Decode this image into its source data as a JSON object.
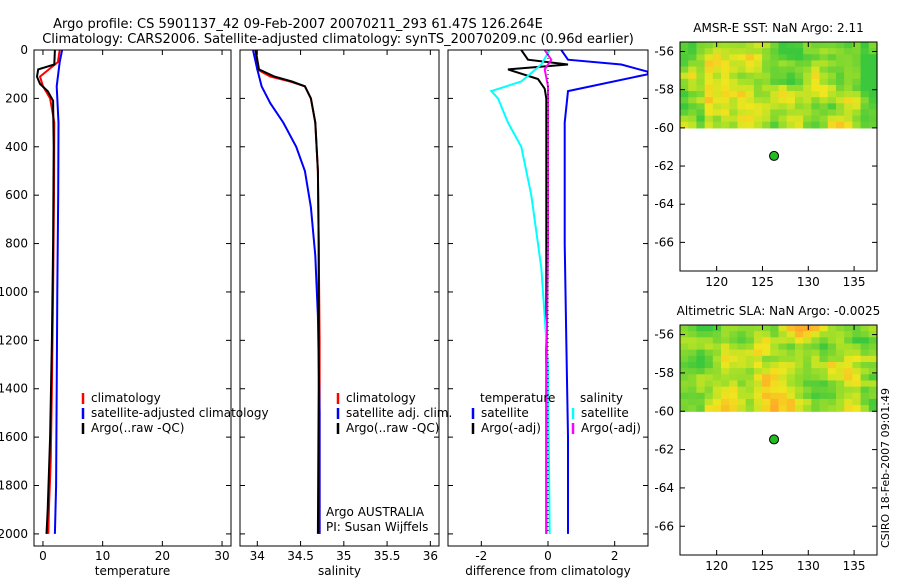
{
  "header": {
    "title_line1": "Argo profile: CS 5901137_42 09-Feb-2007 20070211_293 61.47S 126.264E",
    "title_line2": "Climatology: CARS2006. Satellite-adjusted climatology: synTS_20070209.nc (0.96d earlier)"
  },
  "credit": "CSIRO 18-Feb-2007 09:01:49",
  "colors": {
    "climatology": "#ff0000",
    "satellite": "#0000ff",
    "argo": "#000000",
    "satellite_diff_salinity": "#00ffff",
    "argo_diff_salinity": "#ff00ff",
    "float_marker": "#22bb22"
  },
  "chart_data": [
    {
      "id": "temperature",
      "type": "line",
      "xlabel": "temperature",
      "ylabel": "",
      "xlim": [
        -1.5,
        31.5
      ],
      "ylim": [
        2050,
        0
      ],
      "xticks": [
        0,
        10,
        20,
        30
      ],
      "xtick_labels": [
        "0",
        "10",
        "20",
        "30"
      ],
      "yticks": [
        0,
        200,
        400,
        600,
        800,
        1000,
        1200,
        1400,
        1600,
        1800,
        2000
      ],
      "ytick_labels": [
        "0",
        "200",
        "400",
        "600",
        "800",
        "1000",
        "1200",
        "1400",
        "1600",
        "1800",
        "2000"
      ],
      "legend": [
        "climatology",
        "satellite-adjusted climatology",
        "Argo(..raw -QC)"
      ],
      "legend_position": "lower-right",
      "series": [
        {
          "name": "climatology",
          "color": "#ff0000",
          "x": [
            2.8,
            2.5,
            1.0,
            -0.5,
            0.0,
            1.2,
            1.9,
            1.85,
            1.7,
            1.5,
            1.3,
            1.0,
            0.9
          ],
          "y": [
            0,
            50,
            80,
            110,
            150,
            200,
            300,
            600,
            1000,
            1400,
            1700,
            1900,
            2000
          ]
        },
        {
          "name": "satellite-adjusted climatology",
          "color": "#0000ff",
          "x": [
            3.2,
            2.8,
            2.6,
            2.3,
            2.4,
            2.6,
            2.55,
            2.4,
            2.3,
            2.2,
            2.0
          ],
          "y": [
            0,
            50,
            90,
            150,
            200,
            300,
            600,
            1000,
            1400,
            1800,
            2000
          ]
        },
        {
          "name": "Argo(..raw -QC)",
          "color": "#000000",
          "x": [
            2.0,
            1.9,
            -0.8,
            -1.0,
            -0.5,
            0.8,
            1.7,
            1.8,
            1.7,
            1.5,
            1.2,
            0.8,
            0.6
          ],
          "y": [
            0,
            60,
            80,
            110,
            140,
            170,
            210,
            400,
            800,
            1200,
            1600,
            1900,
            2000
          ]
        }
      ]
    },
    {
      "id": "salinity",
      "type": "line",
      "xlabel": "salinity",
      "ylabel": "",
      "xlim": [
        33.8,
        36.1
      ],
      "ylim": [
        2050,
        0
      ],
      "xticks": [
        34,
        34.5,
        35,
        35.5,
        36
      ],
      "xtick_labels": [
        "34",
        "34.5",
        "35",
        "35.5",
        "36"
      ],
      "legend": [
        "climatology",
        "satellite adj. clim.",
        "Argo(..raw -QC)"
      ],
      "legend_position": "lower-right",
      "annotation": [
        "Argo AUSTRALIA",
        "PI: Susan Wijffels"
      ],
      "series": [
        {
          "name": "climatology",
          "color": "#ff0000",
          "x": [
            33.98,
            34.0,
            34.15,
            34.38,
            34.55,
            34.62,
            34.67,
            34.7,
            34.71,
            34.72,
            34.72,
            34.72
          ],
          "y": [
            0,
            80,
            110,
            130,
            150,
            200,
            300,
            500,
            800,
            1200,
            1600,
            2000
          ]
        },
        {
          "name": "satellite adj. clim.",
          "color": "#0000ff",
          "x": [
            33.95,
            34.0,
            34.05,
            34.15,
            34.3,
            34.45,
            34.55,
            34.62,
            34.67,
            34.7,
            34.72,
            34.72
          ],
          "y": [
            0,
            80,
            150,
            220,
            300,
            400,
            500,
            650,
            850,
            1100,
            1500,
            2000
          ]
        },
        {
          "name": "Argo(..raw -QC)",
          "color": "#000000",
          "x": [
            33.98,
            34.02,
            34.2,
            34.4,
            34.55,
            34.62,
            34.67,
            34.7,
            34.71,
            34.71,
            34.7
          ],
          "y": [
            0,
            80,
            110,
            130,
            150,
            200,
            300,
            500,
            800,
            1400,
            2000
          ]
        }
      ]
    },
    {
      "id": "difference",
      "type": "line",
      "xlabel": "difference from climatology",
      "ylabel": "",
      "xlim": [
        -3.0,
        3.0
      ],
      "ylim": [
        2050,
        0
      ],
      "xticks": [
        -2,
        0,
        2
      ],
      "xtick_labels": [
        "-2",
        "0",
        "2"
      ],
      "legend_columns": [
        {
          "heading": "temperature",
          "entries": [
            "satellite",
            "Argo(-adj)"
          ]
        },
        {
          "heading": "salinity",
          "entries": [
            "satellite",
            "Argo(-adj)"
          ]
        }
      ],
      "legend_position": "lower-center",
      "series": [
        {
          "name": "temperature satellite",
          "color": "#0000ff",
          "x": [
            0.4,
            0.6,
            2.2,
            3.0,
            3.0,
            0.6,
            0.5,
            0.5,
            0.55,
            0.6,
            0.6
          ],
          "y": [
            0,
            40,
            60,
            90,
            100,
            170,
            300,
            800,
            1200,
            1600,
            2000
          ]
        },
        {
          "name": "temperature Argo(-adj)",
          "color": "#000000",
          "x": [
            -0.8,
            -0.6,
            0.6,
            -1.2,
            -0.3,
            -0.1,
            -0.05,
            -0.05,
            -0.05,
            -0.05,
            -0.05
          ],
          "y": [
            0,
            40,
            60,
            80,
            120,
            160,
            200,
            400,
            800,
            1400,
            2000
          ]
        },
        {
          "name": "salinity satellite",
          "color": "#00ffff",
          "x": [
            0.05,
            -0.2,
            -0.8,
            -1.7,
            -1.5,
            -1.2,
            -0.8,
            -0.5,
            -0.2,
            0.0,
            0.05
          ],
          "y": [
            0,
            60,
            130,
            170,
            200,
            300,
            400,
            600,
            900,
            1300,
            2000
          ]
        },
        {
          "name": "salinity Argo(-adj)",
          "color": "#ff00ff",
          "x": [
            -0.1,
            0.1,
            -0.1,
            0.0,
            0.0,
            0.0,
            -0.05,
            -0.05
          ],
          "y": [
            0,
            40,
            80,
            150,
            300,
            800,
            1400,
            2000
          ]
        }
      ]
    },
    {
      "id": "amsre-sst",
      "type": "heatmap",
      "title": "AMSR-E SST: NaN Argo: 2.11",
      "xlim": [
        116,
        137.5
      ],
      "ylim": [
        -67.5,
        -55.5
      ],
      "xticks": [
        120,
        125,
        130,
        135
      ],
      "xtick_labels": [
        "120",
        "125",
        "130",
        "135"
      ],
      "yticks": [
        -56,
        -58,
        -60,
        -62,
        -64,
        -66
      ],
      "ytick_labels": [
        "-56",
        "-58",
        "-60",
        "-62",
        "-64",
        "-66"
      ],
      "data_lat_range": [
        -60,
        -55.5
      ],
      "float_position": [
        126.264,
        -61.47
      ]
    },
    {
      "id": "altimetric-sla",
      "type": "heatmap",
      "title": "Altimetric SLA: NaN Argo: -0.0025",
      "xlim": [
        116,
        137.5
      ],
      "ylim": [
        -67.5,
        -55.5
      ],
      "xticks": [
        120,
        125,
        130,
        135
      ],
      "xtick_labels": [
        "120",
        "125",
        "130",
        "135"
      ],
      "yticks": [
        -56,
        -58,
        -60,
        -62,
        -64,
        -66
      ],
      "ytick_labels": [
        "-56",
        "-58",
        "-60",
        "-62",
        "-64",
        "-66"
      ],
      "data_lat_range": [
        -60,
        -55.5
      ],
      "float_position": [
        126.264,
        -61.47
      ]
    }
  ]
}
